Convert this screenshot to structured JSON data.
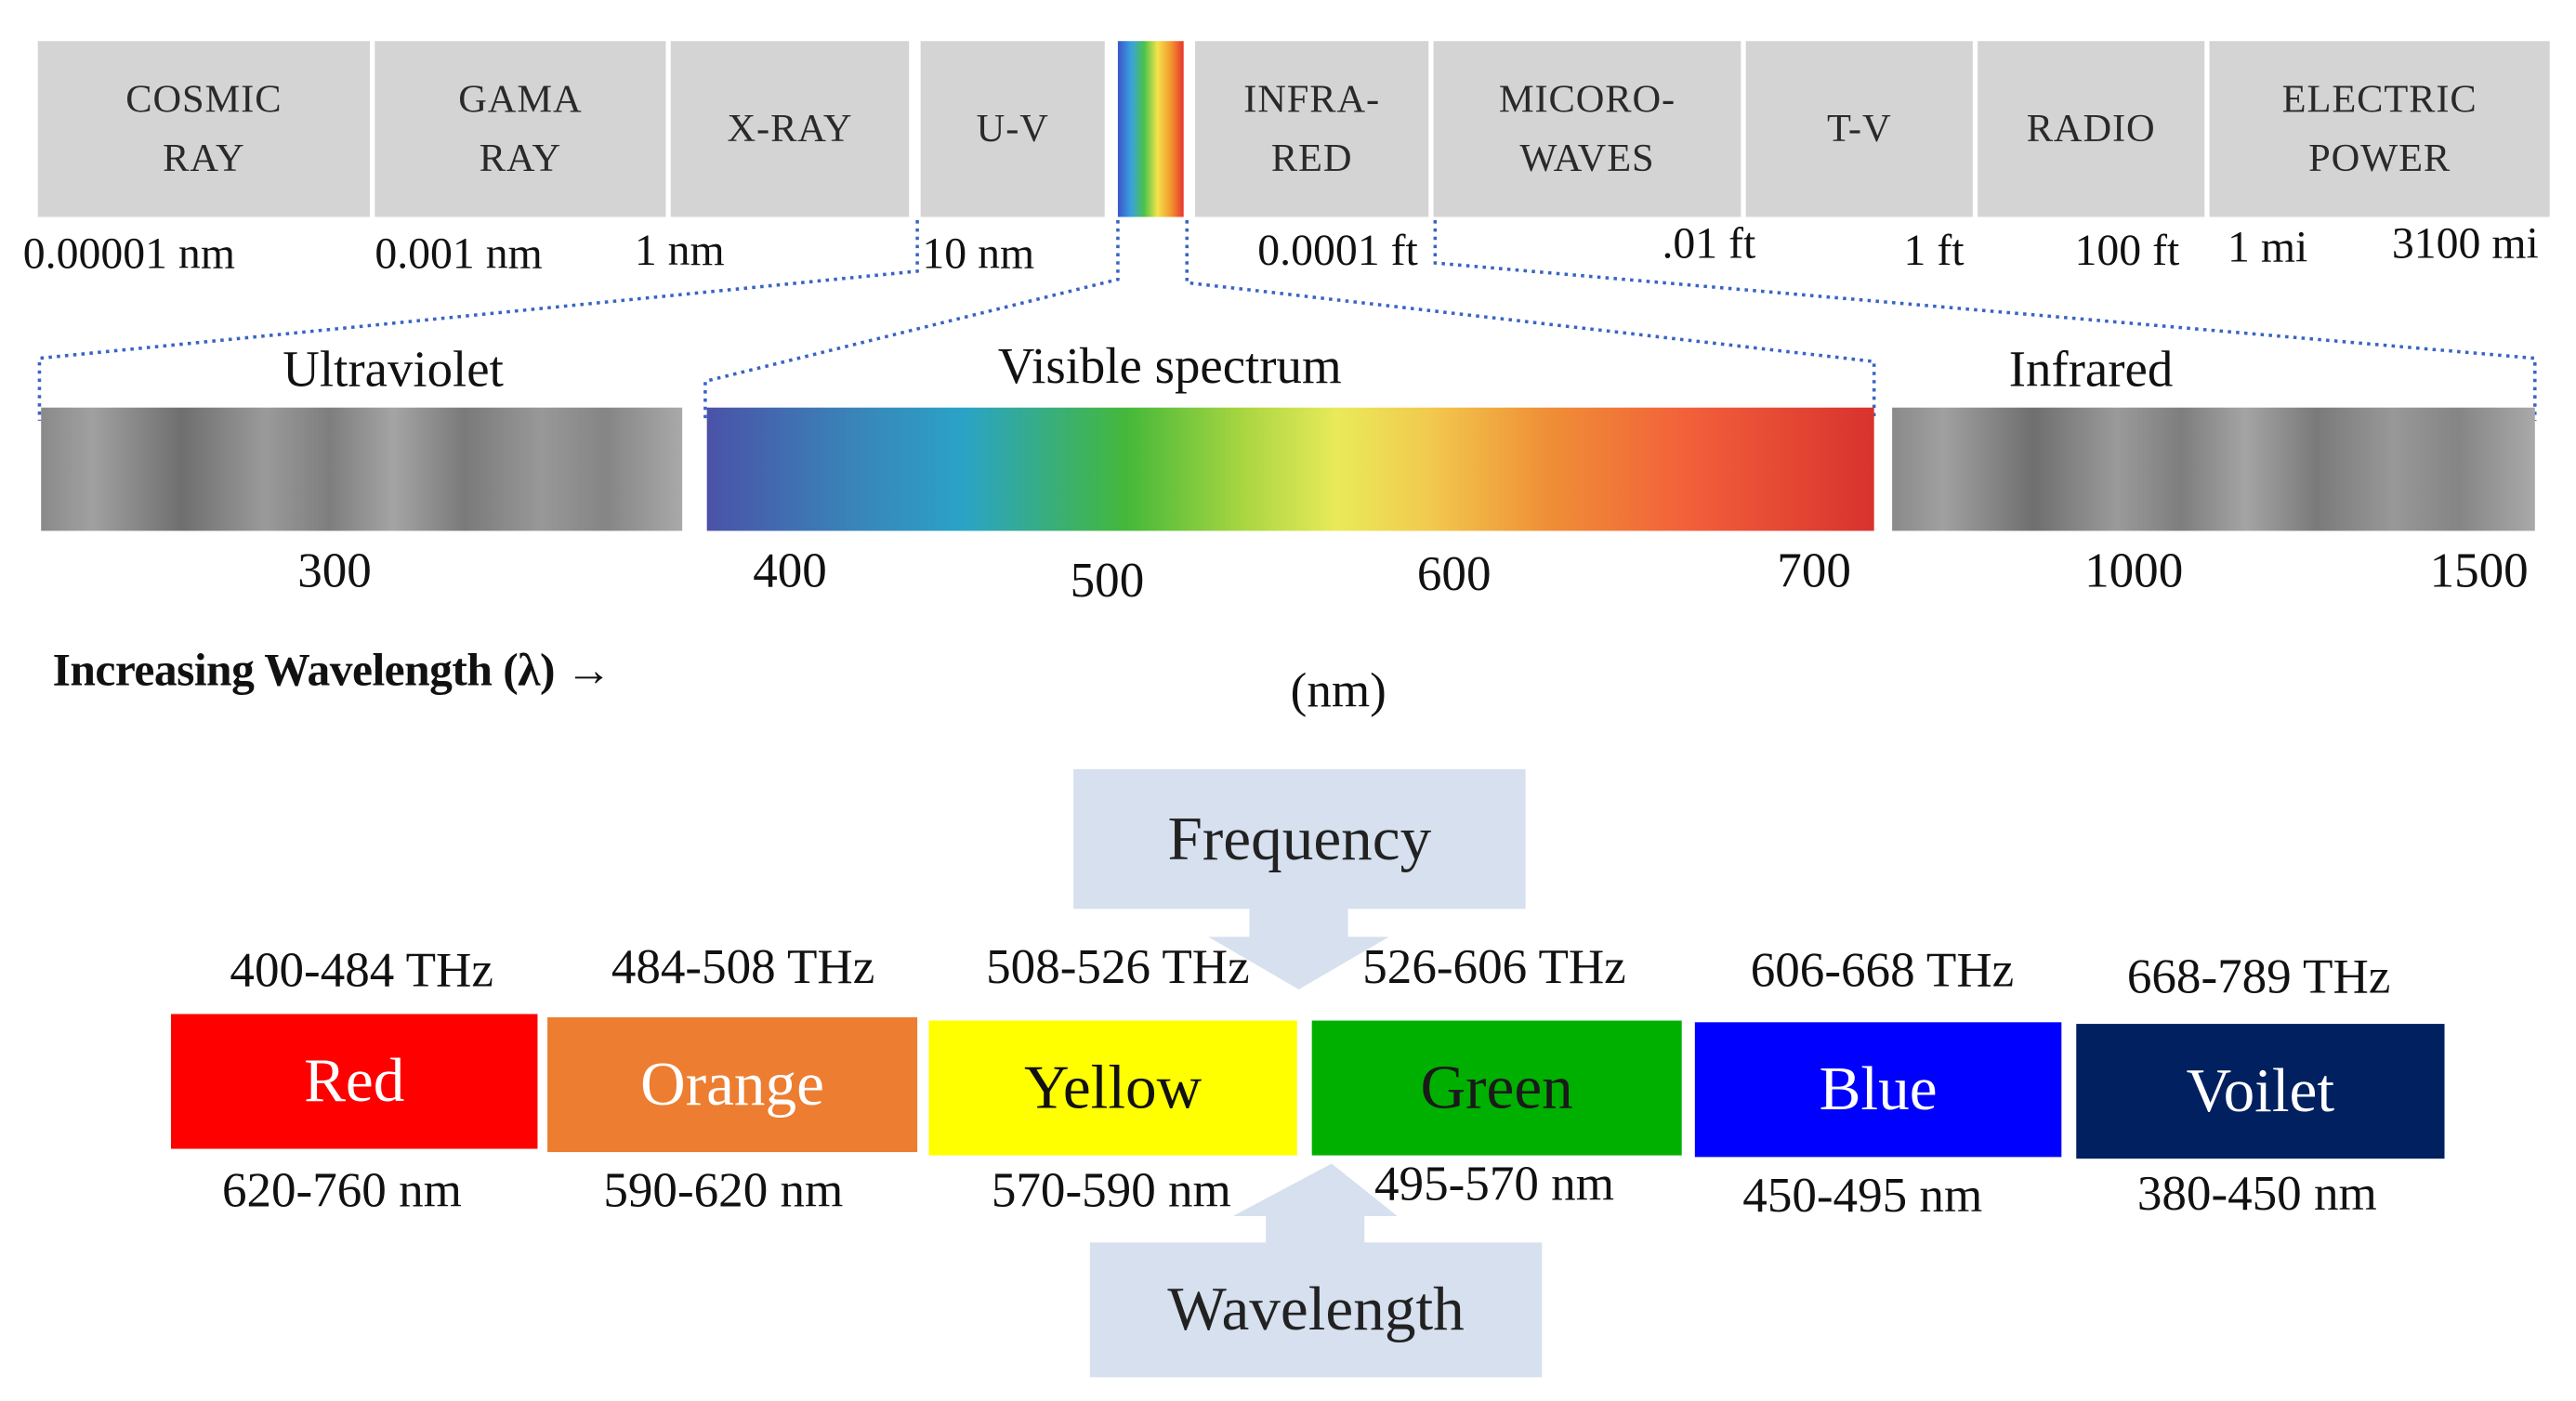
{
  "spectrum_bands": [
    {
      "label": "COSMIC\nRAY"
    },
    {
      "label": "GAMA\nRAY"
    },
    {
      "label": "X-RAY"
    },
    {
      "label": "U-V"
    },
    {
      "label": "INFRA-\nRED"
    },
    {
      "label": "MICORO-\nWAVES"
    },
    {
      "label": "T-V"
    },
    {
      "label": "RADIO"
    },
    {
      "label": "ELECTRIC\nPOWER"
    }
  ],
  "scale_labels": [
    "0.00001 nm",
    "0.001 nm",
    "1 nm",
    "10 nm",
    "0.0001 ft",
    ".01 ft",
    "1 ft",
    "100 ft",
    "1 mi",
    "3100 mi"
  ],
  "zoom": {
    "uv_title": "Ultraviolet",
    "visible_title": "Visible spectrum",
    "ir_title": "Infrared"
  },
  "ticks": [
    "300",
    "400",
    "500",
    "600",
    "700",
    "1000",
    "1500"
  ],
  "wavelength_note": "Increasing Wavelength (λ)   →",
  "unit": "(nm)",
  "colors": [
    {
      "name": "Red",
      "frequency": "400-484 THz",
      "wavelength": "620-760 nm",
      "bg": "#ff0000",
      "fg": "#ffffff"
    },
    {
      "name": "Orange",
      "frequency": "484-508 THz",
      "wavelength": "590-620 nm",
      "bg": "#ed7d31",
      "fg": "#ffffff"
    },
    {
      "name": "Yellow",
      "frequency": "508-526 THz",
      "wavelength": "570-590 nm",
      "bg": "#ffff00",
      "fg": "#111111"
    },
    {
      "name": "Green",
      "frequency": "526-606 THz",
      "wavelength": "495-570 nm",
      "bg": "#00b000",
      "fg": "#1a1a1a"
    },
    {
      "name": "Blue",
      "frequency": "606-668 THz",
      "wavelength": "450-495 nm",
      "bg": "#0000ff",
      "fg": "#ffffff"
    },
    {
      "name": "Voilet",
      "frequency": "668-789 THz",
      "wavelength": "380-450 nm",
      "bg": "#002060",
      "fg": "#ffffff"
    }
  ],
  "callouts": {
    "frequency": "Frequency",
    "wavelength": "Wavelength",
    "fill": "#d6e0ee"
  }
}
